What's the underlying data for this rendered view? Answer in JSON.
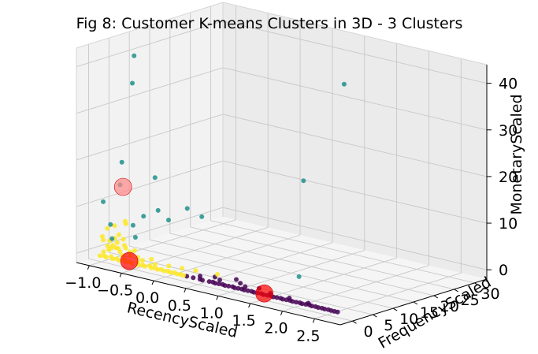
{
  "chart_data": {
    "type": "scatter",
    "projection": "3d",
    "title": "Fig 8: Customer K-means Clusters in 3D - 3 Clusters",
    "xlabel": "RecencyScaled",
    "ylabel": "FrequencyScaled",
    "zlabel": "MonetaryScaled",
    "xlim": [
      -1.2,
      2.9
    ],
    "ylim": [
      -3,
      33
    ],
    "zlim": [
      -2,
      44
    ],
    "xticks": [
      -1.0,
      -0.5,
      0.0,
      0.5,
      1.0,
      1.5,
      2.0,
      2.5
    ],
    "yticks": [
      0,
      5,
      10,
      15,
      20,
      25,
      30
    ],
    "zticks": [
      0,
      10,
      20,
      30,
      40
    ],
    "xtick_labels": [
      "−1.0",
      "−0.5",
      "0.0",
      "0.5",
      "1.0",
      "1.5",
      "2.0",
      "2.5"
    ],
    "ytick_labels": [
      "0",
      "5",
      "10",
      "15",
      "20",
      "25",
      "30"
    ],
    "ztick_labels": [
      "0",
      "10",
      "20",
      "30",
      "40"
    ],
    "grid": true,
    "colors": {
      "cluster_purple": "#440154",
      "cluster_teal": "#21918c",
      "cluster_yellow": "#fde725",
      "centroid": "#ff0000"
    },
    "series": [
      {
        "color": "#440154",
        "points": [
          [
            0.35,
            -0.4,
            -0.6
          ],
          [
            0.45,
            -0.4,
            -0.6
          ],
          [
            0.55,
            -0.3,
            -0.6
          ],
          [
            0.6,
            -0.5,
            -0.6
          ],
          [
            0.7,
            -0.4,
            -0.6
          ],
          [
            0.75,
            -0.3,
            -0.6
          ],
          [
            0.8,
            -0.5,
            -0.6
          ],
          [
            0.85,
            -0.4,
            -0.6
          ],
          [
            0.9,
            -0.3,
            -0.6
          ],
          [
            0.95,
            -0.5,
            -0.6
          ],
          [
            1.0,
            -0.4,
            -0.6
          ],
          [
            1.05,
            -0.2,
            -0.6
          ],
          [
            1.1,
            -0.5,
            -0.6
          ],
          [
            1.15,
            -0.4,
            -0.6
          ],
          [
            1.2,
            -0.3,
            -0.6
          ],
          [
            1.25,
            -0.5,
            -0.6
          ],
          [
            1.3,
            -0.4,
            -0.6
          ],
          [
            1.35,
            -0.3,
            -0.6
          ],
          [
            1.4,
            -0.5,
            -0.6
          ],
          [
            1.45,
            -0.4,
            -0.6
          ],
          [
            1.5,
            -0.3,
            -0.6
          ],
          [
            1.55,
            -0.5,
            -0.6
          ],
          [
            1.6,
            -0.4,
            -0.6
          ],
          [
            1.65,
            -0.3,
            -0.6
          ],
          [
            1.7,
            -0.5,
            -0.6
          ],
          [
            1.75,
            -0.4,
            -0.6
          ],
          [
            1.8,
            -0.3,
            -0.6
          ],
          [
            1.85,
            -0.5,
            -0.6
          ],
          [
            1.9,
            -0.4,
            -0.6
          ],
          [
            1.95,
            -0.3,
            -0.6
          ],
          [
            2.0,
            -0.5,
            -0.6
          ],
          [
            2.05,
            -0.4,
            -0.6
          ],
          [
            2.1,
            -0.3,
            -0.6
          ],
          [
            2.15,
            -0.5,
            -0.6
          ],
          [
            2.2,
            -0.4,
            -0.6
          ],
          [
            2.25,
            -0.3,
            -0.6
          ],
          [
            2.3,
            -0.5,
            -0.6
          ],
          [
            2.35,
            -0.4,
            -0.6
          ],
          [
            2.4,
            -0.5,
            -0.6
          ],
          [
            2.45,
            -0.4,
            -0.6
          ],
          [
            2.5,
            -0.5,
            -0.6
          ],
          [
            2.55,
            -0.4,
            -0.6
          ],
          [
            2.6,
            -0.5,
            -0.6
          ],
          [
            2.65,
            -0.5,
            -0.6
          ],
          [
            2.7,
            -0.5,
            -0.6
          ],
          [
            0.5,
            0.5,
            -0.3
          ],
          [
            0.8,
            0.6,
            -0.2
          ],
          [
            1.2,
            0.5,
            -0.3
          ],
          [
            1.4,
            0.8,
            -0.1
          ],
          [
            1.0,
            1.5,
            0.3
          ],
          [
            0.7,
            1.0,
            0.0
          ],
          [
            1.6,
            0.4,
            -0.4
          ],
          [
            1.9,
            0.3,
            -0.4
          ],
          [
            2.2,
            0.2,
            -0.5
          ],
          [
            1.1,
            0.9,
            0.0
          ]
        ]
      },
      {
        "color": "#21918c",
        "points": [
          [
            -1.0,
            8,
            40
          ],
          [
            -0.9,
            6,
            35
          ],
          [
            -1.0,
            5,
            18
          ],
          [
            -1.1,
            2,
            10
          ],
          [
            -0.9,
            3,
            14
          ],
          [
            -0.8,
            10,
            14
          ],
          [
            -0.6,
            4,
            8
          ],
          [
            -0.5,
            6,
            9
          ],
          [
            -0.3,
            10,
            9
          ],
          [
            -0.4,
            7,
            7
          ],
          [
            -1.05,
            3,
            5
          ],
          [
            -0.2,
            12,
            7
          ],
          [
            -0.6,
            2,
            4
          ],
          [
            -0.9,
            1,
            3
          ],
          [
            1.0,
            28,
            35
          ],
          [
            1.0,
            18,
            17
          ],
          [
            1.5,
            9,
            0.5
          ],
          [
            -0.7,
            3,
            6
          ]
        ]
      },
      {
        "color": "#fde725",
        "points": [
          [
            -1.0,
            -0.4,
            -0.6
          ],
          [
            -0.95,
            -0.2,
            -0.5
          ],
          [
            -0.9,
            -0.4,
            -0.6
          ],
          [
            -0.85,
            0.0,
            -0.4
          ],
          [
            -0.8,
            -0.4,
            -0.6
          ],
          [
            -0.75,
            -0.2,
            -0.5
          ],
          [
            -0.7,
            -0.4,
            -0.6
          ],
          [
            -0.65,
            0.1,
            -0.3
          ],
          [
            -0.6,
            -0.4,
            -0.6
          ],
          [
            -0.55,
            -0.2,
            -0.5
          ],
          [
            -0.5,
            -0.4,
            -0.6
          ],
          [
            -0.45,
            0.2,
            -0.3
          ],
          [
            -0.4,
            -0.4,
            -0.6
          ],
          [
            -0.35,
            -0.2,
            -0.5
          ],
          [
            -0.3,
            -0.4,
            -0.6
          ],
          [
            -0.25,
            0.0,
            -0.4
          ],
          [
            -0.2,
            -0.4,
            -0.6
          ],
          [
            -0.15,
            -0.3,
            -0.5
          ],
          [
            -0.1,
            -0.4,
            -0.6
          ],
          [
            -0.05,
            -0.3,
            -0.5
          ],
          [
            0.0,
            -0.4,
            -0.6
          ],
          [
            0.05,
            -0.3,
            -0.5
          ],
          [
            0.1,
            -0.4,
            -0.6
          ],
          [
            0.15,
            -0.3,
            -0.5
          ],
          [
            0.2,
            -0.4,
            -0.6
          ],
          [
            0.25,
            -0.3,
            -0.6
          ],
          [
            0.3,
            -0.4,
            -0.6
          ],
          [
            -1.0,
            0.5,
            0.0
          ],
          [
            -0.95,
            1.0,
            0.5
          ],
          [
            -1.0,
            1.5,
            1.0
          ],
          [
            -0.9,
            1.2,
            1.5
          ],
          [
            -1.0,
            2.0,
            2.0
          ],
          [
            -0.95,
            2.5,
            2.5
          ],
          [
            -1.05,
            1.0,
            3.0
          ],
          [
            -0.9,
            0.8,
            1.0
          ],
          [
            -0.8,
            1.0,
            1.2
          ],
          [
            -0.85,
            1.5,
            2.2
          ],
          [
            -0.75,
            0.6,
            0.8
          ],
          [
            -0.7,
            1.2,
            1.6
          ],
          [
            -1.1,
            3.0,
            4.0
          ],
          [
            -1.05,
            4.0,
            4.5
          ],
          [
            -0.95,
            3.5,
            3.0
          ],
          [
            -0.9,
            2.0,
            0.8
          ],
          [
            -0.8,
            2.5,
            1.5
          ],
          [
            -0.7,
            0.4,
            0.2
          ],
          [
            -0.6,
            0.8,
            0.4
          ],
          [
            -0.5,
            1.0,
            0.3
          ],
          [
            -0.4,
            0.6,
            0.1
          ],
          [
            -0.3,
            1.2,
            0.5
          ],
          [
            -0.2,
            0.5,
            -0.1
          ],
          [
            0.0,
            0.7,
            0.2
          ],
          [
            0.2,
            0.8,
            0.3
          ],
          [
            0.4,
            1.0,
            0.4
          ],
          [
            0.7,
            1.6,
            0.4
          ],
          [
            -0.6,
            1.8,
            1.2
          ],
          [
            -0.95,
            5.0,
            5.5
          ],
          [
            -1.0,
            6.0,
            4.5
          ],
          [
            -0.85,
            3.0,
            2.5
          ],
          [
            -1.1,
            2.0,
            1.8
          ],
          [
            -0.65,
            1.4,
            0.9
          ]
        ]
      }
    ],
    "centroids": [
      {
        "point": [
          -0.95,
          4.5,
          13
        ],
        "color": "#ff8888"
      },
      {
        "point": [
          -0.55,
          -0.3,
          -0.3
        ],
        "color": "#ff0000"
      },
      {
        "point": [
          1.55,
          -0.3,
          -0.4
        ],
        "color": "#ff0000"
      }
    ]
  }
}
